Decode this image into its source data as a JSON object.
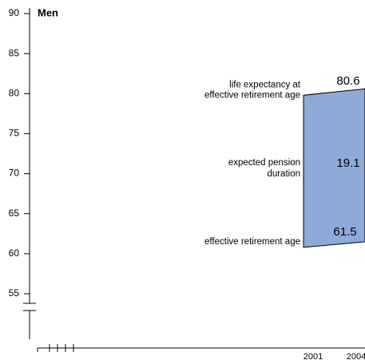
{
  "title": "Men",
  "chart_data": {
    "type": "range",
    "x": [
      2001,
      2004
    ],
    "series": [
      {
        "name": "life expectancy at effective retirement age",
        "values": [
          79.8,
          80.6
        ]
      },
      {
        "name": "effective retirement age",
        "values": [
          60.8,
          61.5
        ]
      }
    ],
    "value_labels": [
      "80.6",
      "61.5"
    ],
    "duration": 19.1,
    "annotations": {
      "upper": [
        "life expectancy at",
        "effective retirement age"
      ],
      "middle": [
        "expected pension",
        "duration"
      ],
      "lower": "effective retirement age"
    },
    "color": "#8eaad8",
    "ylim": [
      55,
      90
    ],
    "yticks": [
      55,
      60,
      65,
      70,
      75,
      80,
      85,
      90
    ]
  }
}
